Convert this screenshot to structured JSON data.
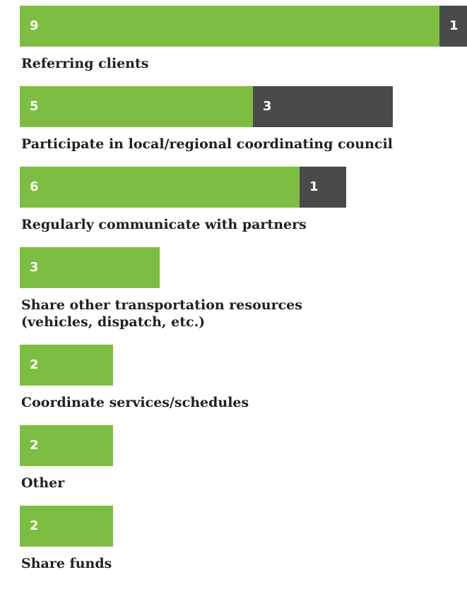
{
  "chart_data": {
    "type": "bar",
    "orientation": "horizontal",
    "stacked": true,
    "categories": [
      "Referring clients",
      "Participate in local/regional coordinating council",
      "Regularly communicate with partners",
      "Share other transportation resources\n(vehicles, dispatch, etc.)",
      "Coordinate services/schedules",
      "Other",
      "Share funds"
    ],
    "series": [
      {
        "color": "#7dbe42",
        "values": [
          9,
          5,
          6,
          3,
          2,
          2,
          2
        ]
      },
      {
        "color": "#4a4a4a",
        "values": [
          1,
          3,
          1,
          null,
          null,
          null,
          null
        ]
      }
    ]
  }
}
